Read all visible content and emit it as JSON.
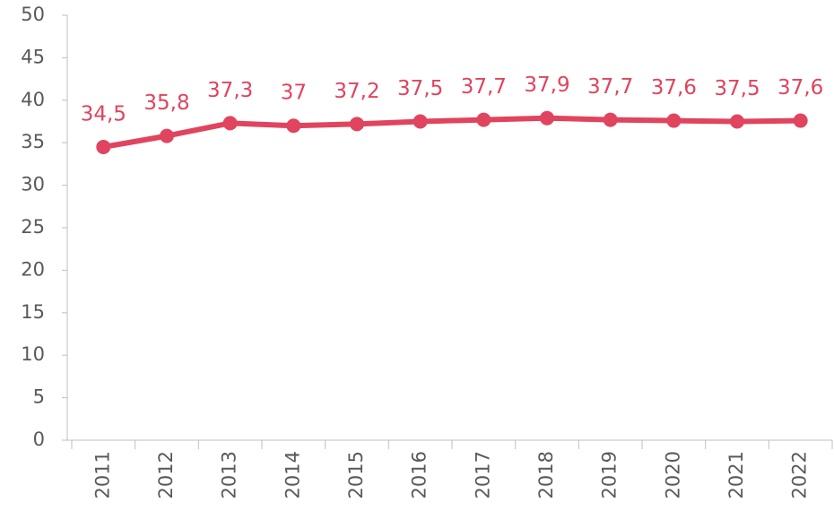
{
  "chart_data": {
    "type": "line",
    "categories": [
      "2011",
      "2012",
      "2013",
      "2014",
      "2015",
      "2016",
      "2017",
      "2018",
      "2019",
      "2020",
      "2021",
      "2022"
    ],
    "series": [
      {
        "color": "#e0445e",
        "values": [
          34.5,
          35.8,
          37.3,
          37,
          37.2,
          37.5,
          37.7,
          37.9,
          37.7,
          37.6,
          37.5,
          37.6
        ],
        "value_labels": [
          "34,5",
          "35,8",
          "37,3",
          "37",
          "37,2",
          "37,5",
          "37,7",
          "37,9",
          "37,7",
          "37,6",
          "37,5",
          "37,6"
        ]
      }
    ],
    "ylim": [
      0,
      50
    ],
    "yticks": [
      0,
      5,
      10,
      15,
      20,
      25,
      30,
      35,
      40,
      45,
      50
    ]
  }
}
